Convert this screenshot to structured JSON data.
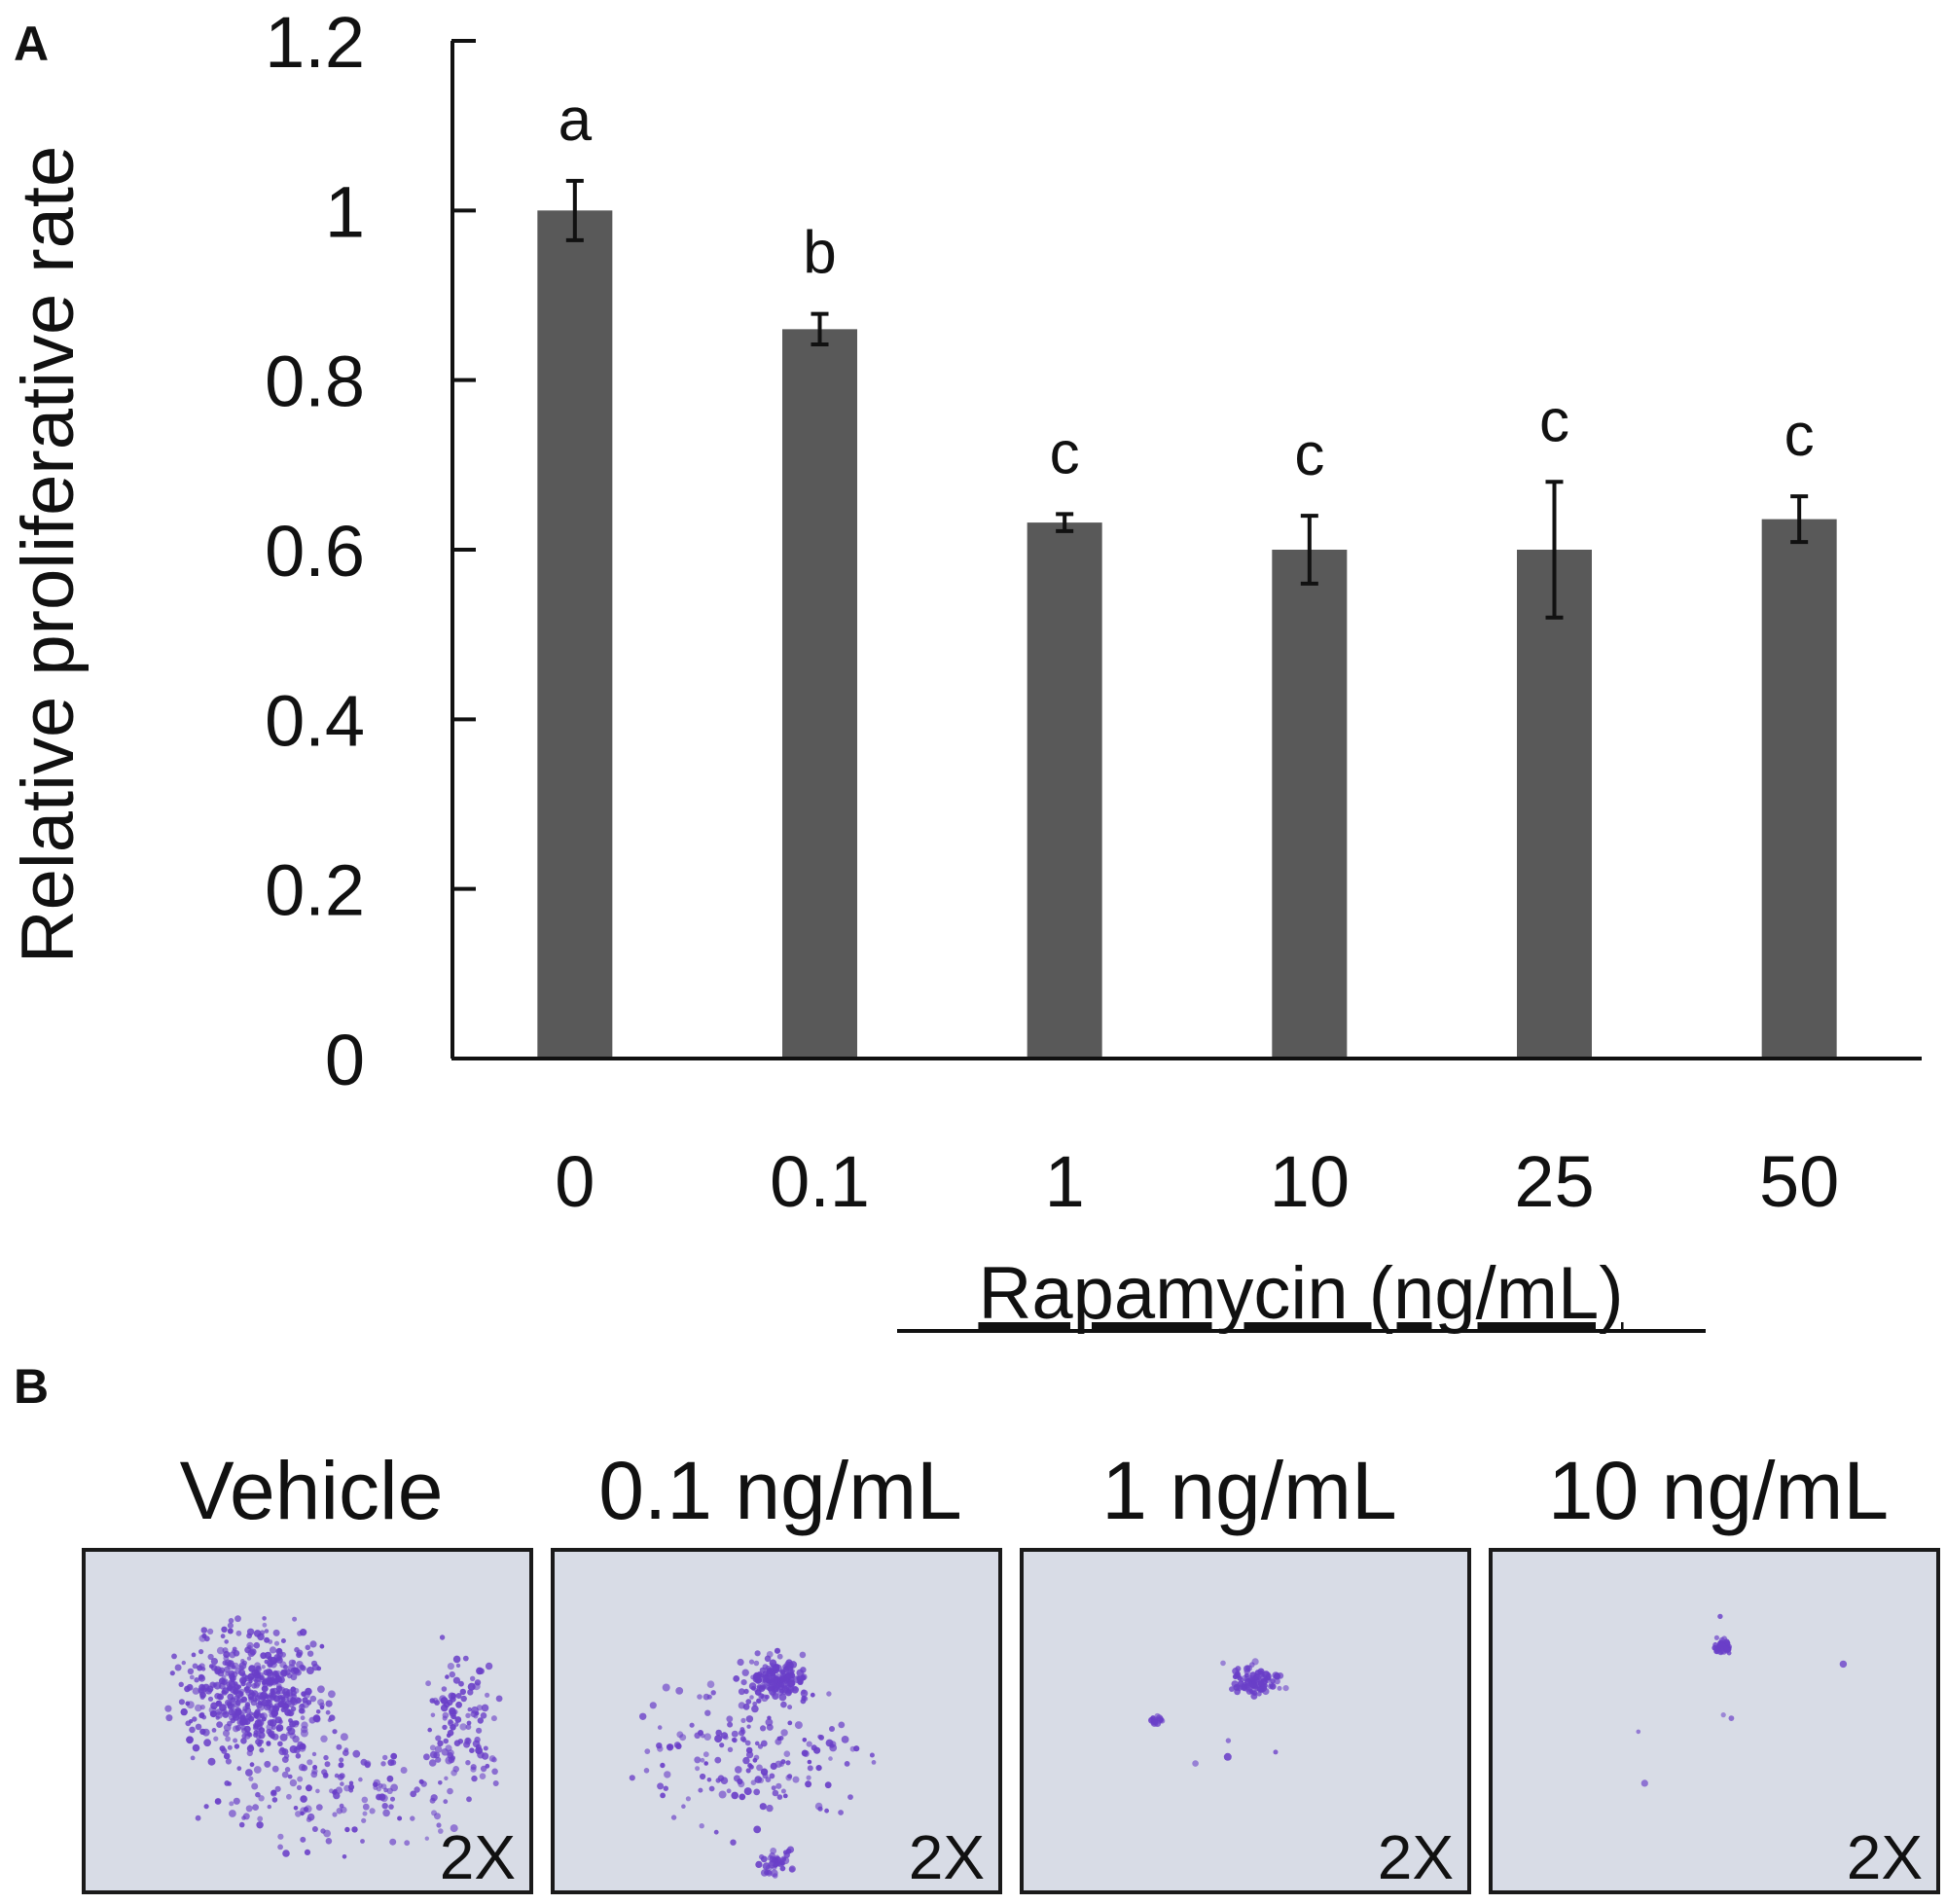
{
  "panels": {
    "a_label": "A",
    "b_label": "B"
  },
  "chart_data": {
    "type": "bar",
    "title": "",
    "xlabel": "Rapamycin (ng/mL)",
    "ylabel": "Relative proliferative rate",
    "categories": [
      "0",
      "0.1",
      "1",
      "10",
      "25",
      "50"
    ],
    "values": [
      1.0,
      0.86,
      0.632,
      0.6,
      0.6,
      0.636
    ],
    "errors": [
      0.035,
      0.018,
      0.01,
      0.04,
      0.08,
      0.027
    ],
    "significance_letters": [
      "a",
      "b",
      "c",
      "c",
      "c",
      "c"
    ],
    "ylim": [
      0,
      1.2
    ],
    "yticks": [
      "0",
      "0.2",
      "0.4",
      "0.6",
      "0.8",
      "1",
      "1.2"
    ],
    "bar_color": "#595959",
    "grid": false,
    "legend": "none"
  },
  "micrographs": [
    {
      "title": "Vehicle",
      "magnification": "2X",
      "density": 1.0
    },
    {
      "title": "0.1 ng/mL",
      "magnification": "2X",
      "density": 0.55
    },
    {
      "title": "1 ng/mL",
      "magnification": "2X",
      "density": 0.18
    },
    {
      "title": "10 ng/mL",
      "magnification": "2X",
      "density": 0.08
    }
  ],
  "colors": {
    "stain": "#6a3fc8",
    "background": "#d8dce6"
  }
}
